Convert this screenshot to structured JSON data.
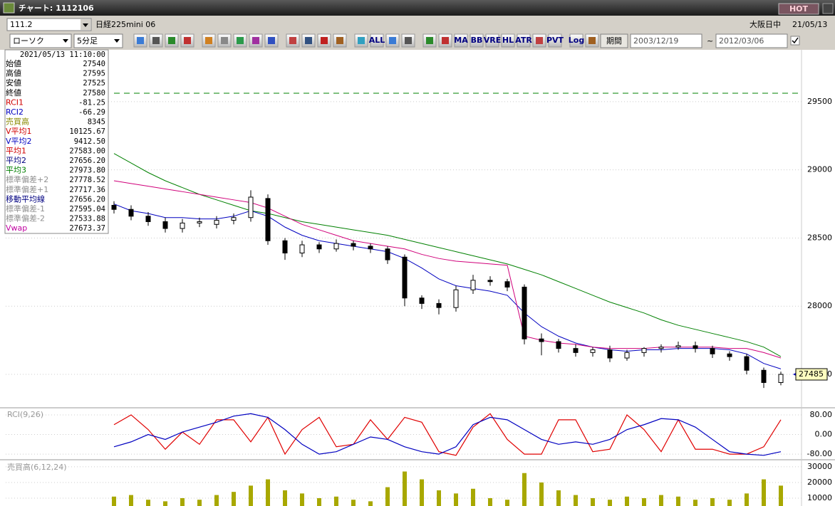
{
  "window": {
    "title": "チャート: 1112106",
    "hot_button": "HOT",
    "toolbar1": {
      "code": "111.2",
      "instrument": "日経225mini 06",
      "session": "大阪日中",
      "date": "21/05/13"
    },
    "toolbar2": {
      "chart_kind": "ローソク",
      "interval": "5分足",
      "icon_labels": [
        "ALL",
        "MA",
        "BB",
        "VRE",
        "HL",
        "ATR",
        "PVT",
        "Log"
      ],
      "period_button": "期間",
      "from_date": "2003/12/19",
      "separator": "~",
      "to_date": "2012/03/06"
    }
  },
  "info_panel": {
    "datetime": "2021/05/13  11:10:00",
    "rows": [
      {
        "label": "始値",
        "value": "27540",
        "color": "#000000"
      },
      {
        "label": "高値",
        "value": "27595",
        "color": "#000000"
      },
      {
        "label": "安値",
        "value": "27525",
        "color": "#000000"
      },
      {
        "label": "終値",
        "value": "27580",
        "color": "#000000"
      },
      {
        "label": "RCI1",
        "value": "-81.25",
        "color": "#d00000"
      },
      {
        "label": "RCI2",
        "value": "-66.29",
        "color": "#0000c0"
      },
      {
        "label": "売買高",
        "value": "8345",
        "color": "#8a8a00"
      },
      {
        "label": "V平均1",
        "value": "10125.67",
        "color": "#d00000"
      },
      {
        "label": "V平均2",
        "value": "9412.50",
        "color": "#0000c0"
      },
      {
        "label": "平均1",
        "value": "27583.00",
        "color": "#d00000"
      },
      {
        "label": "平均2",
        "value": "27656.20",
        "color": "#000080"
      },
      {
        "label": "平均3",
        "value": "27973.80",
        "color": "#008000"
      },
      {
        "label": "標準偏差+2",
        "value": "27778.52",
        "color": "#909090"
      },
      {
        "label": "標準偏差+1",
        "value": "27717.36",
        "color": "#909090"
      },
      {
        "label": "移動平均線",
        "value": "27656.20",
        "color": "#000080"
      },
      {
        "label": "標準偏差-1",
        "value": "27595.04",
        "color": "#909090"
      },
      {
        "label": "標準偏差-2",
        "value": "27533.88",
        "color": "#909090"
      },
      {
        "label": "Vwap",
        "value": "27673.37",
        "color": "#c000a0"
      }
    ]
  },
  "chart_data": [
    {
      "type": "candlestick",
      "last_price_label": "27485",
      "open": [
        28740,
        28710,
        28660,
        28620,
        28570,
        28610,
        28600,
        28630,
        28650,
        28790,
        28480,
        28390,
        28450,
        28420,
        28460,
        28440,
        28420,
        28360,
        28060,
        28020,
        27990,
        28120,
        28190,
        28180,
        28140,
        27760,
        27740,
        27690,
        27660,
        27680,
        27620,
        27660,
        27690,
        27700,
        27710,
        27690,
        27650,
        27630,
        27530,
        27440
      ],
      "high": [
        28770,
        28740,
        28690,
        28650,
        28640,
        28650,
        28660,
        28680,
        28850,
        28820,
        28500,
        28480,
        28470,
        28490,
        28480,
        28460,
        28440,
        28380,
        28080,
        28050,
        28150,
        28230,
        28220,
        28200,
        28160,
        27800,
        27760,
        27720,
        27700,
        27710,
        27680,
        27700,
        27720,
        27740,
        27740,
        27710,
        27670,
        27650,
        27550,
        27520
      ],
      "low": [
        28680,
        28630,
        28590,
        28540,
        28540,
        28580,
        28570,
        28600,
        28620,
        28450,
        28340,
        28360,
        28390,
        28400,
        28410,
        28390,
        28310,
        28000,
        27980,
        27940,
        27960,
        28090,
        28150,
        28110,
        27720,
        27640,
        27660,
        27630,
        27630,
        27590,
        27600,
        27630,
        27660,
        27680,
        27660,
        27620,
        27600,
        27500,
        27400,
        27420
      ],
      "close": [
        28710,
        28660,
        28620,
        28570,
        28610,
        28620,
        28630,
        28650,
        28800,
        28480,
        28390,
        28450,
        28420,
        28460,
        28440,
        28420,
        28340,
        28060,
        28020,
        27990,
        28120,
        28190,
        28180,
        28140,
        27760,
        27740,
        27690,
        27660,
        27680,
        27620,
        27660,
        27690,
        27700,
        27710,
        27690,
        27650,
        27630,
        27530,
        27440,
        27500
      ],
      "overlays": [
        {
          "color": "#008000",
          "values": [
            29120,
            29050,
            28980,
            28920,
            28870,
            28820,
            28780,
            28740,
            28700,
            28680,
            28650,
            28620,
            28600,
            28580,
            28560,
            28540,
            28520,
            28490,
            28460,
            28430,
            28400,
            28370,
            28340,
            28310,
            28270,
            28230,
            28180,
            28130,
            28080,
            28030,
            27990,
            27950,
            27900,
            27860,
            27830,
            27800,
            27770,
            27740,
            27700,
            27630
          ]
        },
        {
          "color": "#0000c0",
          "values": [
            28750,
            28700,
            28680,
            28650,
            28650,
            28640,
            28640,
            28660,
            28700,
            28660,
            28580,
            28520,
            28480,
            28460,
            28440,
            28420,
            28400,
            28350,
            28280,
            28200,
            28150,
            28130,
            28110,
            28080,
            27950,
            27850,
            27780,
            27730,
            27700,
            27680,
            27670,
            27680,
            27680,
            27690,
            27690,
            27690,
            27680,
            27650,
            27580,
            27540
          ]
        },
        {
          "color": "#d0007a",
          "values": [
            28920,
            28900,
            28880,
            28860,
            28840,
            28820,
            28800,
            28780,
            28760,
            28720,
            28660,
            28600,
            28560,
            28520,
            28480,
            28460,
            28440,
            28420,
            28380,
            28350,
            28330,
            28320,
            28310,
            28300,
            27780,
            27750,
            27730,
            27720,
            27700,
            27690,
            27690,
            27690,
            27700,
            27700,
            27700,
            27700,
            27690,
            27690,
            27660,
            27620
          ]
        }
      ],
      "ylim": [
        27260,
        29870
      ],
      "yticks": [
        27500,
        28000,
        28500,
        29000,
        29500
      ],
      "grid": true
    },
    {
      "type": "line",
      "title": "RCI(9,26)",
      "series": [
        {
          "color": "#e00000",
          "values": [
            40,
            80,
            20,
            -60,
            10,
            -40,
            60,
            60,
            -30,
            70,
            -80,
            20,
            70,
            -50,
            -40,
            60,
            -20,
            70,
            50,
            -70,
            -85,
            30,
            85,
            -20,
            -80,
            -80,
            60,
            60,
            -70,
            -60,
            80,
            20,
            -70,
            60,
            -60,
            -60,
            -80,
            -80,
            -50,
            60
          ]
        },
        {
          "color": "#0000c0",
          "values": [
            -50,
            -30,
            0,
            -20,
            10,
            30,
            50,
            75,
            85,
            70,
            20,
            -40,
            -80,
            -70,
            -40,
            -10,
            -20,
            -50,
            -70,
            -80,
            -50,
            40,
            70,
            60,
            20,
            -20,
            -40,
            -30,
            -40,
            -20,
            20,
            40,
            65,
            60,
            30,
            -20,
            -70,
            -80,
            -85,
            -70
          ]
        }
      ],
      "ylim": [
        -100,
        106
      ],
      "yticks": [
        {
          "value": 80,
          "label": "80.00"
        },
        {
          "value": 0,
          "label": "0.00"
        },
        {
          "value": -80,
          "label": "-80.00"
        }
      ],
      "grid": true
    },
    {
      "type": "bar",
      "title": "売買高(6,12,24)",
      "color": "#a8a800",
      "values": [
        11000,
        12000,
        9000,
        8000,
        10000,
        9000,
        12000,
        14000,
        18000,
        22000,
        15000,
        13000,
        10000,
        11000,
        9000,
        8000,
        17000,
        27000,
        22000,
        15000,
        13000,
        16000,
        10000,
        9000,
        26000,
        20000,
        15000,
        12000,
        10000,
        9000,
        11000,
        10000,
        12000,
        11000,
        9000,
        10000,
        9000,
        13000,
        22000,
        18000
      ],
      "ylim": [
        5000,
        33600
      ],
      "yticks": [
        10000,
        20000,
        30000
      ],
      "grid": true
    }
  ]
}
